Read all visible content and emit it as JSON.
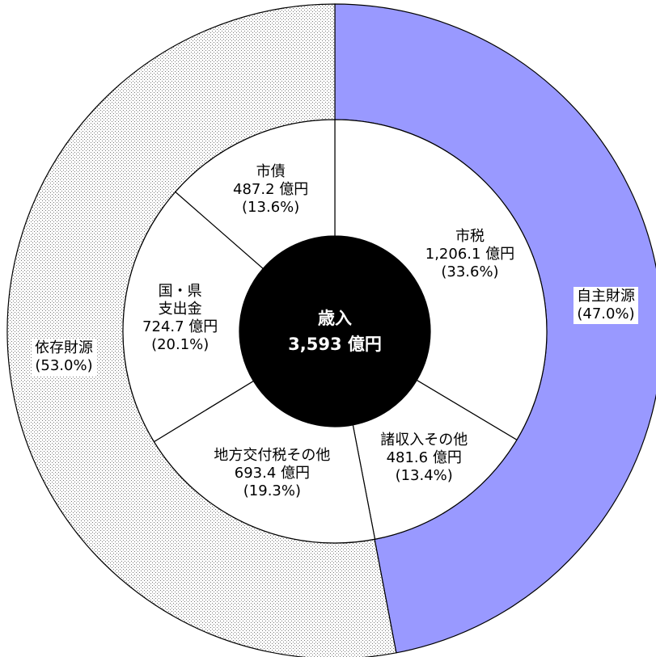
{
  "chart_data": {
    "type": "pie",
    "center": {
      "title": "歳入",
      "total": "3,593 億円"
    },
    "inner_ring": [
      {
        "label_lines": [
          "市税"
        ],
        "value": 1206.1,
        "value_text": "1,206.1 億円",
        "percent_text": "(33.6%)",
        "fill": "#ffffff"
      },
      {
        "label_lines": [
          "諸収入その他"
        ],
        "value": 481.6,
        "value_text": "481.6 億円",
        "percent_text": "(13.4%)",
        "fill": "#ffffff"
      },
      {
        "label_lines": [
          "地方交付税その他"
        ],
        "value": 693.4,
        "value_text": "693.4 億円",
        "percent_text": "(19.3%)",
        "fill": "#ffffff"
      },
      {
        "label_lines": [
          "国・県",
          "支出金"
        ],
        "value": 724.7,
        "value_text": "724.7 億円",
        "percent_text": "(20.1%)",
        "fill": "#ffffff"
      },
      {
        "label_lines": [
          "市債"
        ],
        "value": 487.2,
        "value_text": "487.2 億円",
        "percent_text": "(13.6%)",
        "fill": "#ffffff"
      }
    ],
    "outer_ring": [
      {
        "label": "自主財源",
        "value": 47.0,
        "percent_text": "(47.0%)",
        "fill": "#9999ff",
        "pattern": "solid"
      },
      {
        "label": "依存財源",
        "value": 53.0,
        "percent_text": "(53.0%)",
        "fill": "#e6e6e6",
        "pattern": "dotted"
      }
    ],
    "colors": {
      "outline": "#000000",
      "center_fill": "#000000"
    }
  }
}
